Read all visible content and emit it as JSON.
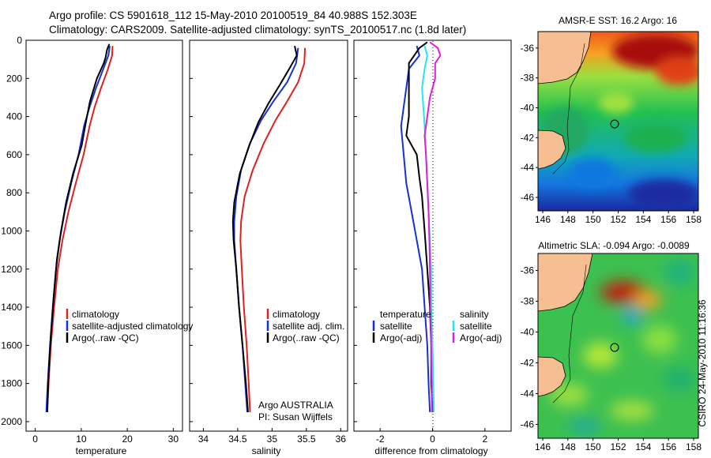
{
  "header": {
    "title_line1": "Argo profile: CS 5901618_112 15-May-2010 20100519_84 40.988S 152.303E",
    "title_line2": "Climatology: CARS2009. Satellite-adjusted climatology: synTS_20100517.nc (1.8d later)"
  },
  "side_label": "CSIRO 24-May-2010 11:16:36",
  "colors": {
    "climatology": "#e0201e",
    "satellite": "#1430d8",
    "argo": "#000000",
    "sat_diff_salinity": "#22e8ee",
    "argo_adj_salinity": "#e020d8",
    "land": "#f6bf92"
  },
  "y_axis": {
    "ticks": [
      "0",
      "200",
      "400",
      "600",
      "800",
      "1000",
      "1200",
      "1400",
      "1600",
      "1800",
      "2000"
    ]
  },
  "temperature_panel": {
    "xlabel": "temperature",
    "xticks": [
      "0",
      "10",
      "20",
      "30"
    ],
    "legend": [
      "climatology",
      "satellite-adjusted climatology",
      "Argo(..raw -QC)"
    ]
  },
  "salinity_panel": {
    "xlabel": "salinity",
    "xticks": [
      "34",
      "34.5",
      "35",
      "35.5",
      "36"
    ],
    "legend": [
      "climatology",
      "satellite adj. clim.",
      "Argo(..raw -QC)"
    ],
    "note_line1": "Argo AUSTRALIA",
    "note_line2": "PI: Susan Wijffels"
  },
  "difference_panel": {
    "xlabel": "difference from climatology",
    "xticks": [
      "-2",
      "0",
      "2"
    ],
    "legend_temperature_title": "temperature",
    "legend_temperature": [
      "satellite",
      "Argo(-adj)"
    ],
    "legend_salinity_title": "salinity",
    "legend_salinity": [
      "satellite",
      "Argo(-adj)"
    ]
  },
  "map_sst": {
    "title": "AMSR-E SST: 16.2 Argo: 16",
    "lat_ticks": [
      "-36",
      "-38",
      "-40",
      "-42",
      "-44",
      "-46"
    ],
    "lon_ticks": [
      "146",
      "148",
      "150",
      "152",
      "154",
      "156",
      "158"
    ]
  },
  "map_sla": {
    "title": "Altimetric SLA: -0.094 Argo: -0.0089",
    "lat_ticks": [
      "-36",
      "-38",
      "-40",
      "-42",
      "-44",
      "-46"
    ],
    "lon_ticks": [
      "146",
      "148",
      "150",
      "152",
      "154",
      "156",
      "158"
    ]
  },
  "chart_data": [
    {
      "type": "line",
      "panel": "temperature",
      "x_label": "temperature",
      "y_label": "",
      "xlim": [
        -2,
        32
      ],
      "ylim": [
        2050,
        0
      ],
      "series": [
        {
          "name": "climatology",
          "color": "#e0201e",
          "points": [
            [
              16.8,
              30
            ],
            [
              16.7,
              80
            ],
            [
              15.8,
              150
            ],
            [
              14.3,
              250
            ],
            [
              12.9,
              350
            ],
            [
              11.8,
              450
            ],
            [
              10.5,
              600
            ],
            [
              8.8,
              750
            ],
            [
              7.2,
              900
            ],
            [
              5.9,
              1050
            ],
            [
              4.9,
              1200
            ],
            [
              4.1,
              1400
            ],
            [
              3.4,
              1600
            ],
            [
              2.9,
              1800
            ],
            [
              2.6,
              1950
            ]
          ]
        },
        {
          "name": "satellite-adjusted climatology",
          "color": "#1430d8",
          "points": [
            [
              16.2,
              30
            ],
            [
              15.9,
              80
            ],
            [
              14.8,
              150
            ],
            [
              13.2,
              250
            ],
            [
              11.8,
              350
            ],
            [
              10.6,
              450
            ],
            [
              9.4,
              600
            ],
            [
              7.8,
              750
            ],
            [
              6.4,
              900
            ],
            [
              5.3,
              1050
            ],
            [
              4.5,
              1200
            ],
            [
              3.8,
              1400
            ],
            [
              3.2,
              1600
            ],
            [
              2.7,
              1800
            ],
            [
              2.4,
              1950
            ]
          ]
        },
        {
          "name": "Argo(..raw -QC)",
          "color": "#000000",
          "points": [
            [
              16.1,
              20
            ],
            [
              15.6,
              50
            ],
            [
              15.3,
              90
            ],
            [
              14.9,
              120
            ],
            [
              13.4,
              200
            ],
            [
              11.9,
              320
            ],
            [
              11.0,
              430
            ],
            [
              10.1,
              550
            ],
            [
              8.2,
              700
            ],
            [
              6.7,
              850
            ],
            [
              5.6,
              1000
            ],
            [
              4.7,
              1150
            ],
            [
              4.0,
              1350
            ],
            [
              3.4,
              1550
            ],
            [
              2.9,
              1750
            ],
            [
              2.6,
              1950
            ]
          ]
        }
      ]
    },
    {
      "type": "line",
      "panel": "salinity",
      "x_label": "salinity",
      "y_label": "",
      "xlim": [
        33.8,
        36.1
      ],
      "ylim": [
        2050,
        0
      ],
      "series": [
        {
          "name": "climatology",
          "color": "#e0201e",
          "points": [
            [
              35.48,
              40
            ],
            [
              35.47,
              120
            ],
            [
              35.38,
              220
            ],
            [
              35.22,
              320
            ],
            [
              35.05,
              420
            ],
            [
              34.88,
              540
            ],
            [
              34.72,
              680
            ],
            [
              34.6,
              820
            ],
            [
              34.55,
              950
            ],
            [
              34.54,
              1050
            ],
            [
              34.56,
              1200
            ],
            [
              34.59,
              1400
            ],
            [
              34.63,
              1600
            ],
            [
              34.66,
              1800
            ],
            [
              34.68,
              1950
            ]
          ]
        },
        {
          "name": "satellite adj. clim.",
          "color": "#1430d8",
          "points": [
            [
              35.38,
              40
            ],
            [
              35.35,
              120
            ],
            [
              35.22,
              220
            ],
            [
              35.02,
              320
            ],
            [
              34.84,
              420
            ],
            [
              34.68,
              540
            ],
            [
              34.55,
              680
            ],
            [
              34.48,
              820
            ],
            [
              34.45,
              950
            ],
            [
              34.45,
              1050
            ],
            [
              34.48,
              1200
            ],
            [
              34.52,
              1400
            ],
            [
              34.57,
              1600
            ],
            [
              34.61,
              1800
            ],
            [
              34.64,
              1950
            ]
          ]
        },
        {
          "name": "Argo(..raw -QC)",
          "color": "#000000",
          "points": [
            [
              35.33,
              30
            ],
            [
              35.36,
              80
            ],
            [
              35.25,
              150
            ],
            [
              35.12,
              230
            ],
            [
              34.95,
              330
            ],
            [
              34.8,
              430
            ],
            [
              34.66,
              560
            ],
            [
              34.53,
              700
            ],
            [
              34.45,
              850
            ],
            [
              34.43,
              950
            ],
            [
              34.44,
              1050
            ],
            [
              34.48,
              1200
            ],
            [
              34.52,
              1400
            ],
            [
              34.57,
              1600
            ],
            [
              34.62,
              1800
            ],
            [
              34.65,
              1950
            ]
          ]
        }
      ]
    },
    {
      "type": "line",
      "panel": "difference",
      "x_label": "difference from climatology",
      "y_label": "",
      "xlim": [
        -3,
        3
      ],
      "ylim": [
        2050,
        0
      ],
      "series": [
        {
          "name": "temperature satellite",
          "color": "#1430d8",
          "points": [
            [
              -0.6,
              30
            ],
            [
              -0.5,
              80
            ],
            [
              -0.9,
              150
            ],
            [
              -1.0,
              250
            ],
            [
              -1.1,
              350
            ],
            [
              -1.2,
              450
            ],
            [
              -1.1,
              600
            ],
            [
              -1.0,
              750
            ],
            [
              -0.8,
              900
            ],
            [
              -0.6,
              1050
            ],
            [
              -0.4,
              1200
            ],
            [
              -0.3,
              1400
            ],
            [
              -0.2,
              1600
            ],
            [
              -0.15,
              1800
            ],
            [
              -0.1,
              1950
            ]
          ]
        },
        {
          "name": "temperature Argo(-adj)",
          "color": "#000000",
          "points": [
            [
              -0.2,
              10
            ],
            [
              -0.5,
              40
            ],
            [
              -0.7,
              80
            ],
            [
              -0.9,
              120
            ],
            [
              -0.9,
              200
            ],
            [
              -0.9,
              300
            ],
            [
              -0.9,
              400
            ],
            [
              -1.0,
              500
            ],
            [
              -0.6,
              600
            ],
            [
              -0.5,
              720
            ],
            [
              -0.4,
              820
            ],
            [
              -0.3,
              1000
            ],
            [
              -0.2,
              1200
            ],
            [
              -0.1,
              1400
            ],
            [
              -0.05,
              1600
            ],
            [
              -0.05,
              1800
            ],
            [
              0,
              1950
            ]
          ]
        },
        {
          "name": "salinity satellite",
          "color": "#22e8ee",
          "points": [
            [
              -0.3,
              30
            ],
            [
              -0.2,
              80
            ],
            [
              -0.3,
              150
            ],
            [
              -0.4,
              250
            ],
            [
              -0.35,
              350
            ],
            [
              -0.3,
              450
            ],
            [
              -0.25,
              600
            ],
            [
              -0.2,
              750
            ],
            [
              -0.15,
              900
            ],
            [
              -0.1,
              1050
            ],
            [
              -0.05,
              1200
            ],
            [
              -0.05,
              1400
            ],
            [
              0,
              1600
            ],
            [
              0.03,
              1800
            ],
            [
              0.05,
              1950
            ]
          ]
        },
        {
          "name": "salinity Argo(-adj)",
          "color": "#e020d8",
          "points": [
            [
              -0.1,
              10
            ],
            [
              0.2,
              40
            ],
            [
              0.3,
              80
            ],
            [
              0.1,
              120
            ],
            [
              0.1,
              200
            ],
            [
              -0.1,
              300
            ],
            [
              -0.2,
              400
            ],
            [
              -0.3,
              500
            ],
            [
              -0.25,
              600
            ],
            [
              -0.2,
              750
            ],
            [
              -0.15,
              900
            ],
            [
              -0.12,
              1050
            ],
            [
              -0.1,
              1200
            ],
            [
              -0.08,
              1400
            ],
            [
              -0.05,
              1600
            ],
            [
              -0.03,
              1800
            ],
            [
              -0.02,
              1950
            ]
          ]
        }
      ]
    }
  ]
}
